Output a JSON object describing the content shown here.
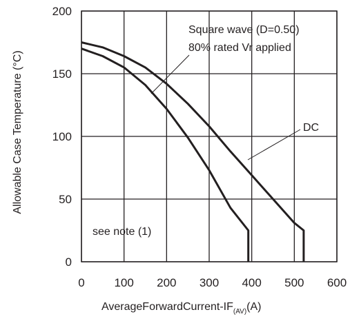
{
  "chart_data": {
    "type": "line",
    "xlabel_main": "AverageForwardCurrent-IF",
    "xlabel_sub": "(AV)",
    "xlabel_unit": "(A)",
    "ylabel": "Allowable Case Temperature (°C)",
    "xlim": [
      0,
      600
    ],
    "ylim": [
      0,
      200
    ],
    "x_ticks": [
      "0",
      "100",
      "200",
      "300",
      "400",
      "500",
      "600"
    ],
    "y_ticks": [
      "0",
      "50",
      "100",
      "150",
      "200"
    ],
    "grid": true,
    "legend": "none",
    "annotations": {
      "square_line1": "Square wave (D=0.50)",
      "square_line2": "80% rated Vr applied",
      "dc": "DC",
      "note": "see note (1)"
    },
    "series": [
      {
        "x": [
          0,
          50,
          100,
          150,
          200,
          250,
          300,
          350,
          392,
          392
        ],
        "y": [
          170,
          164,
          155,
          141,
          122,
          99,
          73,
          43,
          25,
          0
        ]
      },
      {
        "x": [
          0,
          50,
          100,
          150,
          200,
          250,
          300,
          350,
          400,
          450,
          500,
          522,
          522
        ],
        "y": [
          175,
          171,
          164,
          155,
          142,
          126,
          108,
          88,
          69,
          50,
          31,
          25,
          0
        ]
      }
    ]
  }
}
